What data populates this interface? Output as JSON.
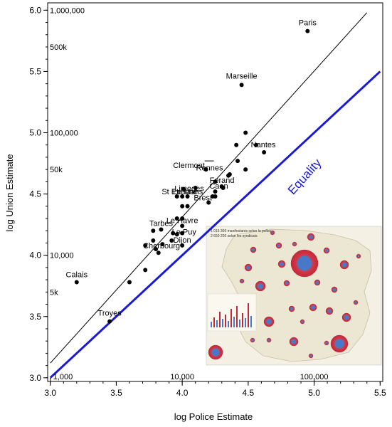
{
  "chart_data": {
    "type": "scatter",
    "title": "",
    "xlabel": "log Police Estimate",
    "ylabel": "log Union Estimate",
    "xlim": [
      2.98,
      5.52
    ],
    "ylim": [
      2.97,
      6.06
    ],
    "x_ticks": [
      {
        "value": 3.0,
        "label": "3.0"
      },
      {
        "value": 3.5,
        "label": "3.5"
      },
      {
        "value": 4.0,
        "label": "4.0"
      },
      {
        "value": 4.5,
        "label": "4.5"
      },
      {
        "value": 5.0,
        "label": "5.0"
      },
      {
        "value": 5.5,
        "label": "5.5"
      }
    ],
    "y_ticks": [
      {
        "value": 3.0,
        "label": "3.0"
      },
      {
        "value": 3.5,
        "label": "3.5"
      },
      {
        "value": 4.0,
        "label": "4.0"
      },
      {
        "value": 4.5,
        "label": "4.5"
      },
      {
        "value": 5.0,
        "label": "5.0"
      },
      {
        "value": 5.5,
        "label": "5.5"
      },
      {
        "value": 6.0,
        "label": "6.0"
      }
    ],
    "x_ref_labels": [
      {
        "value": 3.0,
        "label": "1,000"
      },
      {
        "value": 4.0,
        "label": "10,000"
      },
      {
        "value": 5.0,
        "label": "100,000"
      }
    ],
    "y_ref_labels": [
      {
        "value": 6.0,
        "label": "1,000,000"
      },
      {
        "value": 5.7,
        "label": "500k"
      },
      {
        "value": 5.0,
        "label": "100,000"
      },
      {
        "value": 4.7,
        "label": "50k"
      },
      {
        "value": 4.0,
        "label": "10,000"
      },
      {
        "value": 3.7,
        "label": "5k"
      }
    ],
    "grid": false,
    "reference_lines": [
      {
        "name": "Equality",
        "from": [
          3.0,
          3.0
        ],
        "to": [
          5.5,
          5.5
        ],
        "color": "#1a1ad6"
      },
      {
        "name": "",
        "from": [
          3.0,
          3.12
        ],
        "to": [
          5.4,
          5.98
        ],
        "color": "#000000"
      }
    ],
    "points": [
      {
        "x": 4.95,
        "y": 5.83,
        "label": "Paris"
      },
      {
        "x": 4.45,
        "y": 5.39,
        "label": "Marseille"
      },
      {
        "x": 4.62,
        "y": 4.84,
        "label": "Nantes"
      },
      {
        "x": 4.25,
        "y": 4.6,
        "label": "Rennes"
      },
      {
        "x": 4.18,
        "y": 4.7,
        "label": "Clermont"
      },
      {
        "x": 4.35,
        "y": 4.65,
        "label": "Ferand"
      },
      {
        "x": 4.25,
        "y": 4.52,
        "label": "Caen"
      },
      {
        "x": 4.2,
        "y": 4.43,
        "label": "Brest"
      },
      {
        "x": 4.01,
        "y": 4.54,
        "label": "Limoges"
      },
      {
        "x": 3.96,
        "y": 4.48,
        "label": "St Etienne"
      },
      {
        "x": 4.0,
        "y": 4.48,
        "label": "Le Mans"
      },
      {
        "x": 3.84,
        "y": 4.21,
        "label": "Tarbes"
      },
      {
        "x": 4.0,
        "y": 4.24,
        "label": "Le Havre"
      },
      {
        "x": 3.96,
        "y": 4.17,
        "label": "Le Puy"
      },
      {
        "x": 4.0,
        "y": 4.08,
        "label": "Dijon"
      },
      {
        "x": 3.8,
        "y": 4.05,
        "label": "Cherbourg"
      },
      {
        "x": 3.2,
        "y": 3.78,
        "label": "Calais"
      },
      {
        "x": 3.45,
        "y": 3.46,
        "label": "Troyes"
      },
      {
        "x": 4.48,
        "y": 5.0,
        "label": ""
      },
      {
        "x": 4.41,
        "y": 4.9,
        "label": ""
      },
      {
        "x": 4.56,
        "y": 4.9,
        "label": ""
      },
      {
        "x": 4.48,
        "y": 4.7,
        "label": ""
      },
      {
        "x": 4.42,
        "y": 4.77,
        "label": ""
      },
      {
        "x": 4.36,
        "y": 4.66,
        "label": ""
      },
      {
        "x": 4.31,
        "y": 4.55,
        "label": ""
      },
      {
        "x": 4.3,
        "y": 4.56,
        "label": ""
      },
      {
        "x": 4.25,
        "y": 4.48,
        "label": ""
      },
      {
        "x": 4.23,
        "y": 4.48,
        "label": ""
      },
      {
        "x": 4.1,
        "y": 4.55,
        "label": ""
      },
      {
        "x": 4.04,
        "y": 4.48,
        "label": ""
      },
      {
        "x": 4.04,
        "y": 4.4,
        "label": ""
      },
      {
        "x": 4.0,
        "y": 4.4,
        "label": ""
      },
      {
        "x": 3.96,
        "y": 4.3,
        "label": ""
      },
      {
        "x": 4.0,
        "y": 4.3,
        "label": ""
      },
      {
        "x": 3.93,
        "y": 4.18,
        "label": ""
      },
      {
        "x": 4.0,
        "y": 4.18,
        "label": ""
      },
      {
        "x": 3.92,
        "y": 4.12,
        "label": ""
      },
      {
        "x": 3.85,
        "y": 4.09,
        "label": ""
      },
      {
        "x": 3.78,
        "y": 4.2,
        "label": ""
      },
      {
        "x": 3.78,
        "y": 4.12,
        "label": ""
      },
      {
        "x": 3.72,
        "y": 4.08,
        "label": ""
      },
      {
        "x": 3.72,
        "y": 3.88,
        "label": ""
      },
      {
        "x": 3.6,
        "y": 3.78,
        "label": ""
      },
      {
        "x": 3.82,
        "y": 4.02,
        "label": ""
      }
    ],
    "annotations": [
      "Equality"
    ],
    "inset_image": {
      "description_text": [
        "1 015 300 manifestants selon la police",
        "2 650 200 selon les syndicats"
      ]
    }
  }
}
